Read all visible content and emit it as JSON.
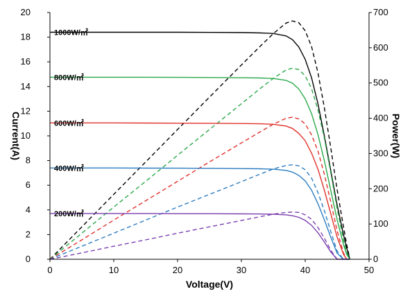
{
  "chart_data": {
    "type": "line",
    "title": "",
    "xlabel": "Voltage(V)",
    "ylabel": "Current(A)",
    "y2label": "Power(W)",
    "xlim": [
      0,
      50
    ],
    "ylim": [
      0,
      20
    ],
    "y2lim": [
      0,
      700
    ],
    "xticks": [
      "0",
      "10",
      "20",
      "30",
      "40",
      "50"
    ],
    "yticks": [
      "0",
      "2",
      "4",
      "6",
      "8",
      "10",
      "12",
      "14",
      "16",
      "18",
      "20"
    ],
    "y2ticks": [
      "0",
      "100",
      "200",
      "300",
      "400",
      "500",
      "600",
      "700"
    ],
    "grid": false,
    "legend": "inline labels at left of each current curve",
    "x": [
      0,
      5,
      10,
      15,
      20,
      25,
      30,
      33,
      35,
      37,
      38,
      39,
      40,
      41,
      42,
      43,
      44,
      45,
      46,
      46.5,
      47
    ],
    "series": [
      {
        "name": "1000W/㎡",
        "color": "#000000",
        "current": [
          18.4,
          18.4,
          18.4,
          18.4,
          18.4,
          18.39,
          18.37,
          18.34,
          18.3,
          18.1,
          17.8,
          17.2,
          16.2,
          14.7,
          12.6,
          10.0,
          7.2,
          4.4,
          2.0,
          0.9,
          0.0
        ],
        "power": [
          0,
          92,
          184,
          276,
          368,
          460,
          551,
          605,
          640,
          670,
          676,
          671,
          648,
          603,
          529,
          430,
          317,
          198,
          92,
          42,
          0
        ]
      },
      {
        "name": "800W/㎡",
        "color": "#2aa84a",
        "current": [
          14.75,
          14.75,
          14.75,
          14.75,
          14.74,
          14.73,
          14.71,
          14.69,
          14.65,
          14.5,
          14.27,
          13.8,
          13.0,
          11.8,
          10.1,
          8.0,
          5.6,
          3.2,
          1.2,
          0.4,
          0.0
        ],
        "power": [
          0,
          74,
          148,
          221,
          295,
          368,
          441,
          485,
          513,
          537,
          542,
          538,
          520,
          484,
          424,
          344,
          246,
          144,
          55,
          19,
          0
        ]
      },
      {
        "name": "600W/㎡",
        "color": "#e0302a",
        "current": [
          11.05,
          11.05,
          11.05,
          11.04,
          11.03,
          11.02,
          11.0,
          10.98,
          10.94,
          10.8,
          10.6,
          10.2,
          9.6,
          8.6,
          7.3,
          5.6,
          3.7,
          1.8,
          0.4,
          0.0,
          0.0
        ],
        "power": [
          0,
          55,
          111,
          166,
          221,
          276,
          330,
          362,
          383,
          400,
          403,
          398,
          384,
          353,
          307,
          241,
          163,
          81,
          18,
          0,
          0
        ]
      },
      {
        "name": "400W/㎡",
        "color": "#2c7cc0",
        "current": [
          7.4,
          7.4,
          7.4,
          7.39,
          7.38,
          7.37,
          7.35,
          7.33,
          7.3,
          7.2,
          7.06,
          6.8,
          6.35,
          5.6,
          4.5,
          3.2,
          1.8,
          0.5,
          0.0,
          0.0,
          0.0
        ],
        "power": [
          0,
          37,
          74,
          111,
          148,
          184,
          220,
          242,
          256,
          266,
          268,
          265,
          254,
          230,
          189,
          138,
          79,
          23,
          0,
          0,
          0
        ]
      },
      {
        "name": "200W/㎡",
        "color": "#7a3fb0",
        "current": [
          3.7,
          3.7,
          3.7,
          3.7,
          3.69,
          3.69,
          3.68,
          3.67,
          3.65,
          3.6,
          3.53,
          3.4,
          3.15,
          2.75,
          2.15,
          1.4,
          0.6,
          0.0,
          0.0,
          0.0,
          0.0
        ],
        "power": [
          0,
          18,
          37,
          55,
          74,
          92,
          110,
          121,
          128,
          133,
          134,
          133,
          126,
          113,
          90,
          60,
          26,
          0,
          0,
          0,
          0
        ]
      }
    ]
  }
}
